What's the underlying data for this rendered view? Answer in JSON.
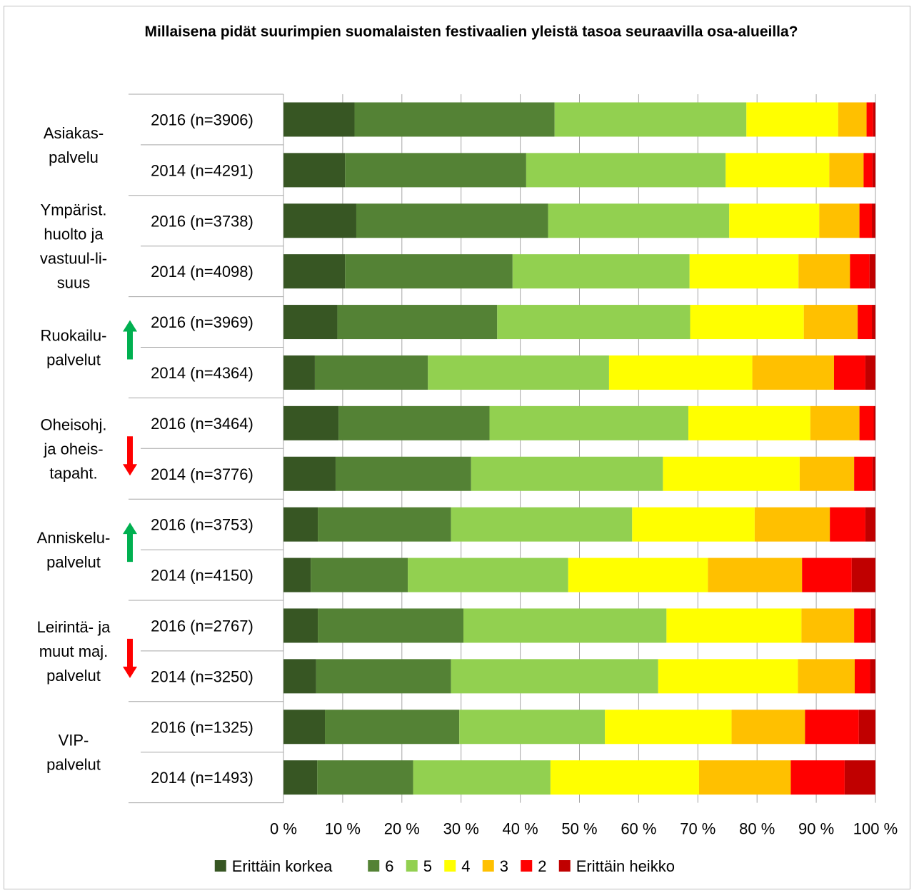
{
  "chart_data": {
    "type": "bar",
    "orientation": "horizontal",
    "stacked": "percent",
    "title": "Millaisena pidät suurimpien suomalaisten festivaalien yleistä tasoa seuraavilla osa-alueilla?",
    "xlim": [
      0,
      100
    ],
    "x_ticks": [
      "0 %",
      "10 %",
      "20 %",
      "30 %",
      "40 %",
      "50 %",
      "60 %",
      "70 %",
      "80 %",
      "90 %",
      "100 %"
    ],
    "grid": true,
    "legend_position": "bottom",
    "series": [
      {
        "name": "Erittäin korkea",
        "color": "#375623"
      },
      {
        "name": "6",
        "color": "#548235"
      },
      {
        "name": "5",
        "color": "#92d050"
      },
      {
        "name": "4",
        "color": "#ffff00"
      },
      {
        "name": "3",
        "color": "#ffc000"
      },
      {
        "name": "2",
        "color": "#ff0000"
      },
      {
        "name": "Erittäin heikko",
        "color": "#c00000"
      }
    ],
    "groups": [
      {
        "label": [
          "Asiakas-",
          "palvelu"
        ],
        "trend": null
      },
      {
        "label": [
          "Ympärist.",
          "huolto ja",
          "vastuul-li-",
          "suus"
        ],
        "trend": null
      },
      {
        "label": [
          "Ruokailu-",
          "palvelut"
        ],
        "trend": "up"
      },
      {
        "label": [
          "Oheisohj.",
          "ja oheis-",
          "tapaht."
        ],
        "trend": "down"
      },
      {
        "label": [
          "Anniskelu-",
          "palvelut"
        ],
        "trend": "up"
      },
      {
        "label": [
          "Leirintä- ja",
          "muut maj.",
          "palvelut"
        ],
        "trend": "down"
      },
      {
        "label": [
          "VIP-",
          "palvelut"
        ],
        "trend": null
      }
    ],
    "categories": [
      "2016 (n=3906)",
      "2014 (n=4291)",
      "2016 (n=3738)",
      "2014 (n=4098)",
      "2016 (n=3969)",
      "2014 (n=4364)",
      "2016 (n=3464)",
      "2014 (n=3776)",
      "2016 (n=3753)",
      "2014 (n=4150)",
      "2016 (n=2767)",
      "2014 (n=3250)",
      "2016 (n=1325)",
      "2014 (n=1493)"
    ],
    "values": [
      [
        12.0,
        33.8,
        32.4,
        15.5,
        4.8,
        1.1,
        0.4
      ],
      [
        10.4,
        30.6,
        33.7,
        17.5,
        5.8,
        1.5,
        0.5
      ],
      [
        12.3,
        32.4,
        30.6,
        15.2,
        6.8,
        2.1,
        0.6
      ],
      [
        10.4,
        28.3,
        29.9,
        18.4,
        8.7,
        3.3,
        1.0
      ],
      [
        9.1,
        27.0,
        32.6,
        19.2,
        9.1,
        2.4,
        0.6
      ],
      [
        5.3,
        19.1,
        30.6,
        24.2,
        13.8,
        5.3,
        1.7
      ],
      [
        9.3,
        25.5,
        33.6,
        20.6,
        8.3,
        2.4,
        0.3
      ],
      [
        8.8,
        22.9,
        32.4,
        23.1,
        9.2,
        3.1,
        0.5
      ],
      [
        5.8,
        22.5,
        30.6,
        20.7,
        12.7,
        6.0,
        1.7
      ],
      [
        4.6,
        16.4,
        27.1,
        23.6,
        15.9,
        8.4,
        4.0
      ],
      [
        5.8,
        24.6,
        34.3,
        22.8,
        8.9,
        2.8,
        0.8
      ],
      [
        5.5,
        22.8,
        35.0,
        23.6,
        9.6,
        2.6,
        0.9
      ],
      [
        7.0,
        22.7,
        24.6,
        21.4,
        12.4,
        9.1,
        2.8
      ],
      [
        5.7,
        16.2,
        23.2,
        25.1,
        15.5,
        9.1,
        5.2
      ]
    ]
  }
}
